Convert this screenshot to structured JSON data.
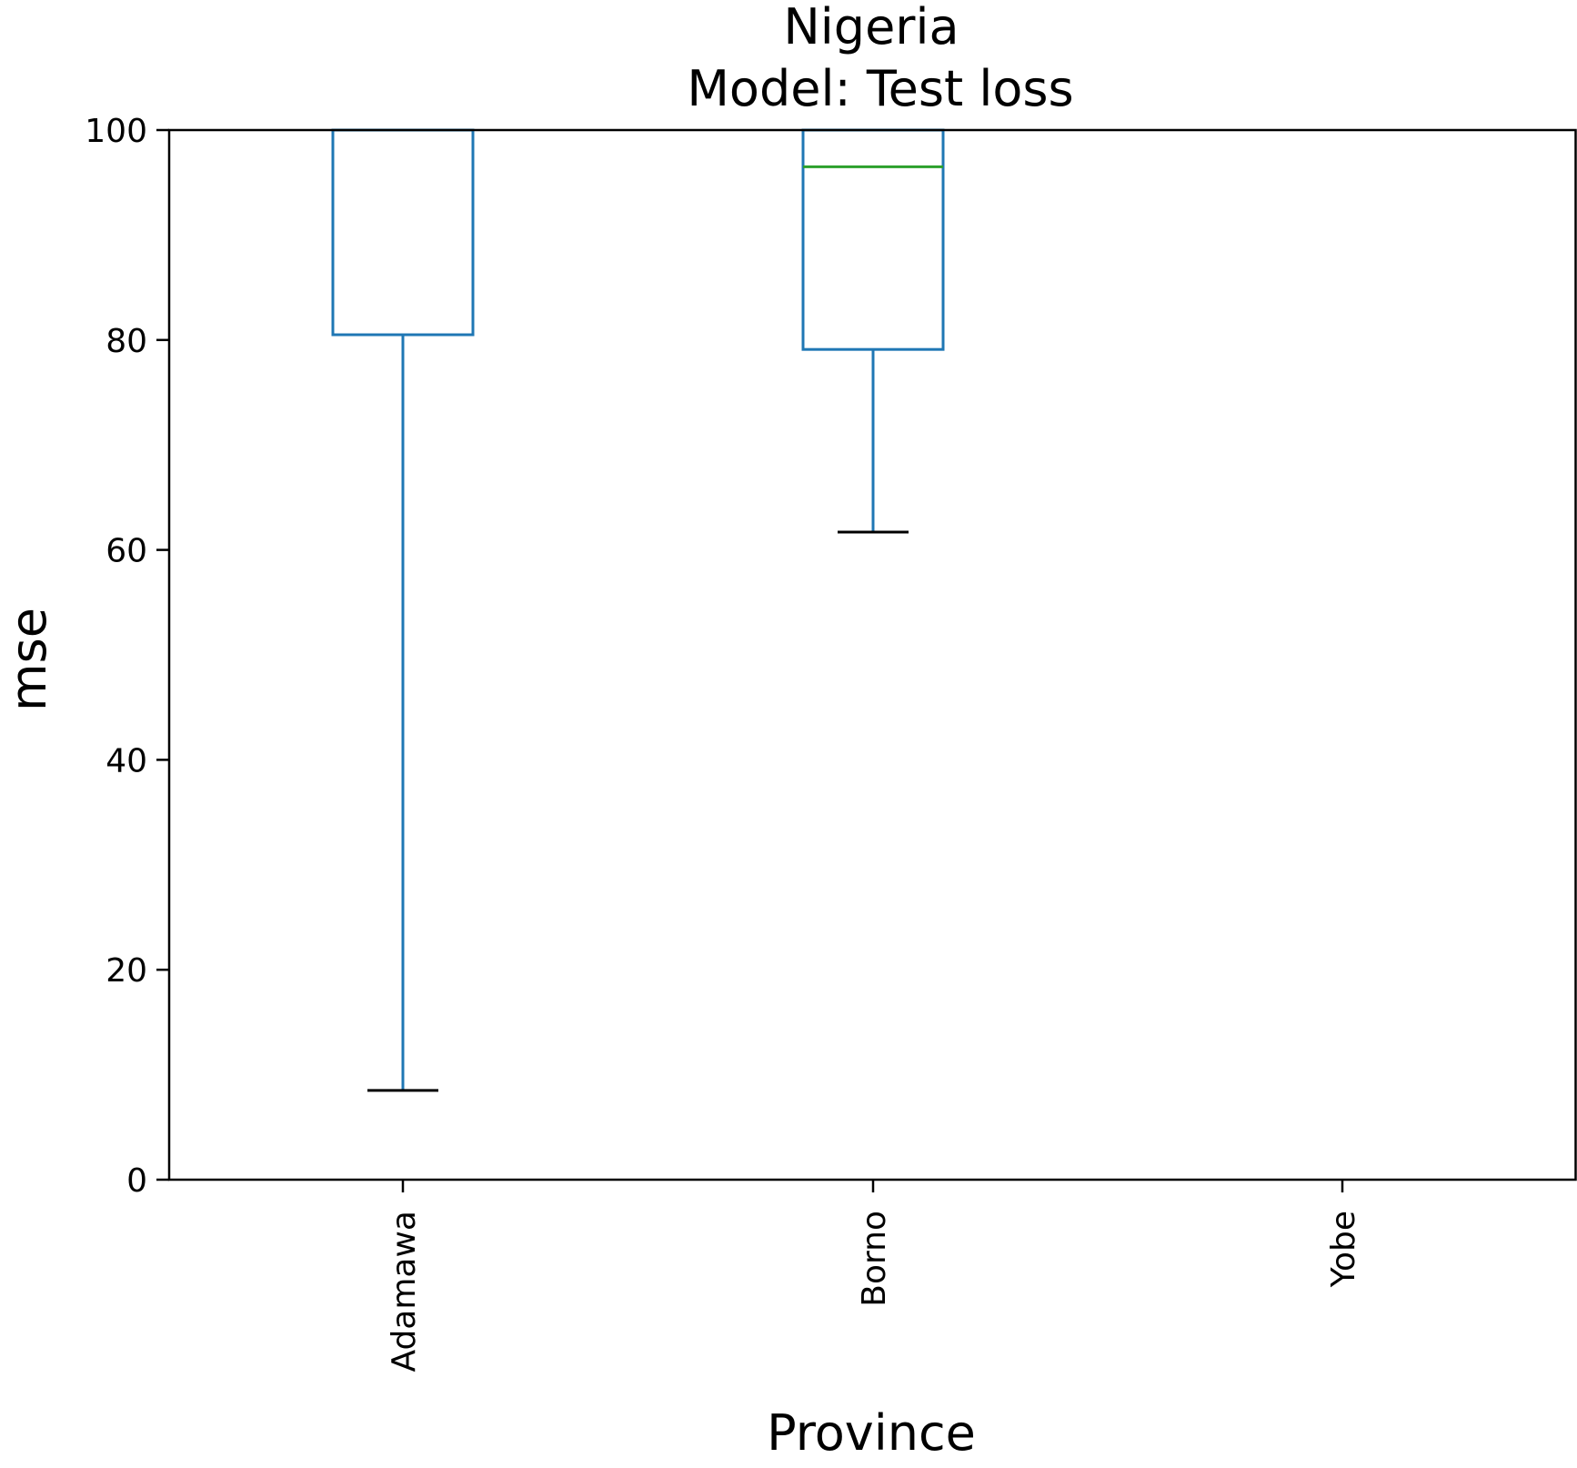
{
  "chart_data": {
    "type": "box",
    "title": "Nigeria",
    "subtitle": "Model: Test loss",
    "xlabel": "Province",
    "ylabel": "mse",
    "ylim": [
      0,
      100
    ],
    "yticks": [
      0,
      20,
      40,
      60,
      80,
      100
    ],
    "ytick_labels": [
      "0",
      "20",
      "40",
      "60",
      "80",
      "100"
    ],
    "categories": [
      "Adamawa",
      "Borno",
      "Yobe"
    ],
    "boxes": [
      {
        "category": "Adamawa",
        "whisker_low": 8.5,
        "q1": 80.5,
        "median": null,
        "q3": 100,
        "whisker_high": 100
      },
      {
        "category": "Borno",
        "whisker_low": 61.7,
        "q1": 79.1,
        "median": 96.5,
        "q3": 100,
        "whisker_high": 100
      },
      {
        "category": "Yobe",
        "whisker_low": null,
        "q1": null,
        "median": null,
        "q3": null,
        "whisker_high": null
      }
    ],
    "grid": false,
    "colors": {
      "box": "#1f77b4",
      "median": "#2ca02c",
      "cap": "#000000",
      "axis": "#000000"
    }
  }
}
